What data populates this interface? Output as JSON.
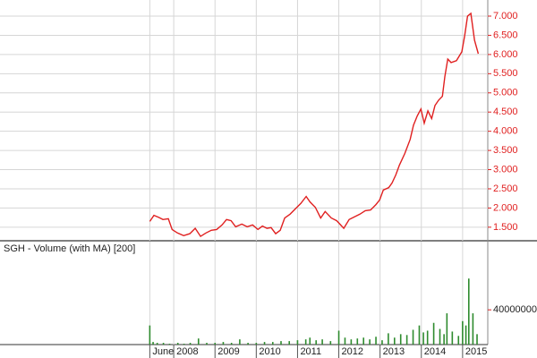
{
  "chart_data": [
    {
      "type": "line",
      "color": "#e02020",
      "label_color": "#e02020",
      "grid": true,
      "x": [
        2007.42,
        2007.52,
        2007.63,
        2007.74,
        2007.87,
        2007.96,
        2008.09,
        2008.24,
        2008.39,
        2008.52,
        2008.65,
        2008.78,
        2008.91,
        2009.04,
        2009.17,
        2009.28,
        2009.39,
        2009.5,
        2009.65,
        2009.78,
        2009.91,
        2010.04,
        2010.15,
        2010.26,
        2010.36,
        2010.47,
        2010.58,
        2010.69,
        2010.82,
        2010.95,
        2011.08,
        2011.21,
        2011.3,
        2011.43,
        2011.56,
        2011.67,
        2011.82,
        2011.95,
        2012.12,
        2012.25,
        2012.38,
        2012.51,
        2012.64,
        2012.77,
        2012.9,
        2012.99,
        2013.08,
        2013.21,
        2013.29,
        2013.38,
        2013.47,
        2013.6,
        2013.73,
        2013.81,
        2013.9,
        2013.99,
        2014.07,
        2014.16,
        2014.25,
        2014.33,
        2014.42,
        2014.51,
        2014.57,
        2014.64,
        2014.72,
        2014.85,
        2014.98,
        2015.05,
        2015.12,
        2015.2,
        2015.29,
        2015.38
      ],
      "values": [
        1.65,
        1.81,
        1.76,
        1.7,
        1.72,
        1.44,
        1.35,
        1.28,
        1.33,
        1.47,
        1.26,
        1.35,
        1.42,
        1.44,
        1.56,
        1.7,
        1.67,
        1.51,
        1.58,
        1.51,
        1.56,
        1.44,
        1.53,
        1.47,
        1.49,
        1.33,
        1.42,
        1.74,
        1.84,
        1.98,
        2.12,
        2.3,
        2.16,
        2.02,
        1.74,
        1.91,
        1.74,
        1.67,
        1.47,
        1.7,
        1.77,
        1.84,
        1.93,
        1.95,
        2.09,
        2.21,
        2.47,
        2.53,
        2.65,
        2.86,
        3.12,
        3.42,
        3.79,
        4.16,
        4.4,
        4.58,
        4.21,
        4.53,
        4.33,
        4.67,
        4.81,
        4.91,
        5.42,
        5.88,
        5.79,
        5.84,
        6.07,
        6.49,
        7.0,
        7.07,
        6.37,
        6.02
      ],
      "xlim": [
        2003.79,
        2015.61
      ],
      "ylim": [
        1.17,
        7.42
      ],
      "yticks": [
        {
          "value": 1.5,
          "label": "1.500"
        },
        {
          "value": 2,
          "label": "2.000"
        },
        {
          "value": 2.5,
          "label": "2.500"
        },
        {
          "value": 3,
          "label": "3.000"
        },
        {
          "value": 3.5,
          "label": "3.500"
        },
        {
          "value": 4,
          "label": "4.000"
        },
        {
          "value": 4.5,
          "label": "4.500"
        },
        {
          "value": 5,
          "label": "5.000"
        },
        {
          "value": 5.5,
          "label": "5.500"
        },
        {
          "value": 6,
          "label": "6.000"
        },
        {
          "value": 6.5,
          "label": "6.500"
        },
        {
          "value": 7,
          "label": "7.000"
        }
      ]
    },
    {
      "type": "bar",
      "title": "SGH - Volume (with MA) [200]",
      "color": "#2e8b2e",
      "label_color": "#e02020",
      "x": [
        2007.42,
        2007.5,
        2007.6,
        2007.75,
        2007.9,
        2008.1,
        2008.25,
        2008.4,
        2008.6,
        2008.8,
        2009.0,
        2009.2,
        2009.4,
        2009.6,
        2009.8,
        2010.0,
        2010.2,
        2010.4,
        2010.6,
        2010.8,
        2011.0,
        2011.2,
        2011.3,
        2011.45,
        2011.6,
        2011.8,
        2012.0,
        2012.15,
        2012.3,
        2012.45,
        2012.6,
        2012.75,
        2012.9,
        2013.05,
        2013.2,
        2013.35,
        2013.5,
        2013.65,
        2013.8,
        2013.95,
        2014.05,
        2014.15,
        2014.3,
        2014.45,
        2014.55,
        2014.62,
        2014.75,
        2014.9,
        2015.0,
        2015.08,
        2015.15,
        2015.25,
        2015.35
      ],
      "values": [
        22000000,
        3000000,
        2000000,
        2000000,
        1000000,
        2000000,
        1000000,
        2000000,
        7000000,
        2000000,
        2000000,
        3000000,
        2000000,
        6000000,
        2000000,
        2000000,
        3000000,
        3000000,
        4000000,
        4000000,
        5000000,
        6000000,
        8000000,
        5000000,
        6000000,
        4000000,
        16000000,
        8000000,
        6000000,
        7000000,
        8000000,
        6000000,
        9000000,
        5000000,
        13000000,
        8000000,
        12000000,
        11000000,
        17000000,
        22000000,
        14000000,
        16000000,
        25000000,
        18000000,
        12000000,
        36000000,
        15000000,
        10000000,
        27000000,
        22000000,
        76000000,
        36000000,
        12000000
      ],
      "xlim": [
        2003.79,
        2015.61
      ],
      "ylim": [
        0,
        102000000
      ],
      "yticks": [
        40000000
      ],
      "xticks": [
        {
          "value": 2007.42,
          "label": "June"
        },
        2008,
        2009,
        2010,
        2011,
        2012,
        2013,
        2014,
        2015
      ]
    }
  ]
}
